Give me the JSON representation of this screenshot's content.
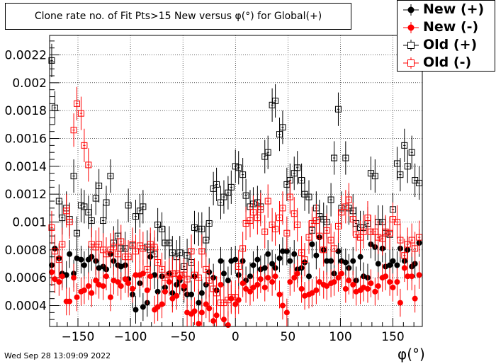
{
  "title": "Clone rate no. of Fit Pts>15 New versus φ(°) for Global(+)",
  "timestamp": "Wed Sep 28 13:09:09 2022",
  "xaxis_title": "φ(°)",
  "legend": [
    {
      "label": "New (+)",
      "color": "#000000",
      "style": "filled-circle"
    },
    {
      "label": "New (-)",
      "color": "#ff0000",
      "style": "filled-circle"
    },
    {
      "label": "Old (+)",
      "color": "#000000",
      "style": "open-square"
    },
    {
      "label": "Old (-)",
      "color": "#ff0000",
      "style": "open-square"
    }
  ],
  "chart_data": {
    "type": "scatter",
    "xlim": [
      -177,
      178
    ],
    "ylim": [
      0.00025,
      0.00234
    ],
    "xticks": [
      -150,
      -100,
      -50,
      0,
      50,
      100,
      150
    ],
    "xtick_labels": [
      "−150",
      "−100",
      "−50",
      "0",
      "50",
      "100",
      "150"
    ],
    "yticks": [
      0.0004,
      0.0006,
      0.0008,
      0.001,
      0.0012,
      0.0014,
      0.0016,
      0.0018,
      0.002,
      0.0022
    ],
    "ytick_labels": [
      "0.0004",
      "0.0006",
      "0.0008",
      "0.001",
      "0.0012",
      "0.0014",
      "0.0016",
      "0.0018",
      "0.002",
      "0.0022"
    ],
    "grid": true,
    "legend_position": "top-right",
    "x": [
      -175,
      -172,
      -168,
      -165,
      -161,
      -158,
      -154,
      -151,
      -147,
      -144,
      -140,
      -137,
      -133,
      -130,
      -126,
      -123,
      -119,
      -116,
      -112,
      -109,
      -105,
      -102,
      -98,
      -95,
      -91,
      -88,
      -84,
      -81,
      -77,
      -74,
      -70,
      -67,
      -63,
      -60,
      -56,
      -53,
      -49,
      -46,
      -42,
      -39,
      -35,
      -32,
      -28,
      -25,
      -21,
      -18,
      -14,
      -11,
      -7,
      -4,
      0,
      3,
      7,
      10,
      14,
      17,
      21,
      24,
      28,
      31,
      35,
      38,
      42,
      45,
      49,
      52,
      56,
      59,
      63,
      66,
      70,
      73,
      77,
      80,
      84,
      87,
      91,
      94,
      98,
      101,
      105,
      108,
      112,
      115,
      119,
      122,
      126,
      129,
      133,
      136,
      140,
      143,
      147,
      150,
      154,
      157,
      161,
      164,
      168,
      171,
      175
    ],
    "series": [
      {
        "name": "New (+)",
        "color": "#000000",
        "marker": "filled-circle",
        "y": [
          0.00069,
          0.00081,
          0.00074,
          0.00063,
          0.00062,
          0.00077,
          0.00063,
          0.00074,
          0.00073,
          0.00069,
          0.00073,
          0.00075,
          0.00072,
          0.00067,
          0.00068,
          0.00066,
          0.00077,
          0.00072,
          0.00069,
          0.00068,
          0.00069,
          0.00059,
          0.00048,
          0.00037,
          0.00056,
          0.00039,
          0.00042,
          0.00075,
          0.00062,
          0.0005,
          0.00061,
          0.00053,
          0.00063,
          0.00049,
          0.00055,
          0.00058,
          0.00052,
          0.00048,
          0.00048,
          0.00061,
          0.00042,
          0.00049,
          0.00055,
          0.00064,
          0.0006,
          0.00051,
          0.00072,
          0.00063,
          0.00058,
          0.00072,
          0.00073,
          0.00062,
          0.00072,
          0.00058,
          0.00061,
          0.00069,
          0.00073,
          0.00066,
          0.00067,
          0.00077,
          0.0007,
          0.00067,
          0.00074,
          0.00079,
          0.00079,
          0.00072,
          0.00077,
          0.00066,
          0.00067,
          0.00071,
          0.00061,
          0.00084,
          0.00076,
          0.00089,
          0.0008,
          0.00072,
          0.00072,
          0.00063,
          0.00079,
          0.00072,
          0.00071,
          0.00067,
          0.00072,
          0.00058,
          0.00075,
          0.00061,
          0.0006,
          0.00084,
          0.00082,
          0.0007,
          0.00081,
          0.00068,
          0.00069,
          0.00072,
          0.00069,
          0.00081,
          0.00072,
          0.0008,
          0.00068,
          0.0007,
          0.00085
        ],
        "yerr": [
          0.0001,
          0.0001,
          0.0001,
          0.0001,
          0.0001,
          0.0001,
          0.0001,
          0.0001,
          0.0001,
          0.0001,
          0.0001,
          0.0001,
          0.0001,
          0.0001,
          0.0001,
          0.0001,
          0.0001,
          0.0001,
          0.0001,
          0.0001,
          0.0001,
          0.0001,
          0.0001,
          0.0001,
          0.0001,
          0.0001,
          0.0001,
          0.0001,
          0.0001,
          0.0001,
          0.0001,
          0.0001,
          0.0001,
          0.0001,
          0.0001,
          0.0001,
          0.0001,
          0.0001,
          0.0001,
          0.0001,
          0.0001,
          0.0001,
          0.0001,
          0.0001,
          0.0001,
          0.0001,
          0.0001,
          0.0001,
          0.0001,
          0.0001,
          0.0001,
          0.0001,
          0.0001,
          0.0001,
          0.0001,
          0.0001,
          0.0001,
          0.0001,
          0.0001,
          0.0001,
          0.0001,
          0.0001,
          0.0001,
          0.0001,
          0.0001,
          0.0001,
          0.0001,
          0.0001,
          0.0001,
          0.0001,
          0.0001,
          0.0001,
          0.0001,
          0.0001,
          0.0001,
          0.0001,
          0.0001,
          0.0001,
          0.0001,
          0.0001,
          0.0001,
          0.0001,
          0.0001,
          0.0001,
          0.0001,
          0.0001,
          0.0001,
          0.0001,
          0.0001,
          0.0001,
          0.0001,
          0.0001,
          0.0001,
          0.0001,
          0.0001,
          0.0001,
          0.0001,
          0.0001,
          0.0001,
          0.0001,
          0.0001
        ]
      },
      {
        "name": "New (-)",
        "color": "#ff0000",
        "marker": "filled-circle",
        "y": [
          0.00064,
          0.00059,
          0.00057,
          0.00061,
          0.00043,
          0.00043,
          0.0006,
          0.00046,
          0.0005,
          0.00051,
          0.00054,
          0.00049,
          0.00058,
          0.00055,
          0.00054,
          0.00061,
          0.00046,
          0.00058,
          0.00057,
          0.00054,
          0.00059,
          0.00056,
          0.00052,
          0.00062,
          0.00062,
          0.00063,
          0.00051,
          0.00061,
          0.00037,
          0.00039,
          0.00041,
          0.0005,
          0.00057,
          0.00045,
          0.00047,
          0.0006,
          0.00054,
          0.00035,
          0.00034,
          0.00036,
          0.00027,
          0.00035,
          0.00041,
          0.00038,
          0.00029,
          0.00033,
          0.00055,
          0.0003,
          0.00026,
          0.00045,
          0.00041,
          0.00044,
          0.00056,
          0.00052,
          0.0005,
          0.00053,
          0.00055,
          0.00059,
          0.00053,
          0.0006,
          0.00057,
          0.00061,
          0.00048,
          0.0004,
          0.00035,
          0.00057,
          0.0006,
          0.00063,
          0.00052,
          0.00047,
          0.00048,
          0.00049,
          0.00051,
          0.00057,
          0.00055,
          0.00054,
          0.00056,
          0.00057,
          0.0006,
          0.00063,
          0.00052,
          0.00058,
          0.00055,
          0.0005,
          0.00051,
          0.00053,
          0.00052,
          0.00056,
          0.0005,
          0.00054,
          0.0006,
          0.00061,
          0.00057,
          0.00053,
          0.00057,
          0.00042,
          0.00067,
          0.00061,
          0.00061,
          0.00045,
          0.00062
        ],
        "yerr": [
          0.0001,
          0.0001,
          0.0001,
          0.0001,
          0.0001,
          0.0001,
          0.0001,
          0.0001,
          0.0001,
          0.0001,
          0.0001,
          0.0001,
          0.0001,
          0.0001,
          0.0001,
          0.0001,
          0.0001,
          0.0001,
          0.0001,
          0.0001,
          0.0001,
          0.0001,
          0.0001,
          0.0001,
          0.0001,
          0.0001,
          0.0001,
          0.0001,
          0.0001,
          0.0001,
          0.0001,
          0.0001,
          0.0001,
          0.0001,
          0.0001,
          0.0001,
          0.0001,
          0.0001,
          0.0001,
          0.0001,
          0.0001,
          0.0001,
          0.0001,
          0.0001,
          0.0001,
          0.0001,
          0.0001,
          0.0001,
          0.0001,
          0.0001,
          0.0001,
          0.0001,
          0.0001,
          0.0001,
          0.0001,
          0.0001,
          0.0001,
          0.0001,
          0.0001,
          0.0001,
          0.0001,
          0.0001,
          0.0001,
          0.0001,
          0.0001,
          0.0001,
          0.0001,
          0.0001,
          0.0001,
          0.0001,
          0.0001,
          0.0001,
          0.0001,
          0.0001,
          0.0001,
          0.0001,
          0.0001,
          0.0001,
          0.0001,
          0.0001,
          0.0001,
          0.0001,
          0.0001,
          0.0001,
          0.0001,
          0.0001,
          0.0001,
          0.0001,
          0.0001,
          0.0001,
          0.0001,
          0.0001,
          0.0001,
          0.0001,
          0.0001,
          0.0001,
          0.0001,
          0.0001,
          0.0001,
          0.0001,
          0.0001
        ]
      },
      {
        "name": "Old (+)",
        "color": "#000000",
        "marker": "open-square",
        "y": [
          0.00216,
          0.00182,
          0.00115,
          0.00103,
          0.0011,
          0.00102,
          0.00133,
          0.00092,
          0.00112,
          0.00111,
          0.00107,
          0.00101,
          0.00117,
          0.00126,
          0.00101,
          0.00114,
          0.00133,
          0.00085,
          0.0009,
          0.00081,
          0.00081,
          0.00112,
          0.00083,
          0.00104,
          0.00108,
          0.00111,
          0.00082,
          0.0008,
          0.00077,
          0.00098,
          0.00095,
          0.00085,
          0.00085,
          0.00078,
          0.00075,
          0.00078,
          0.00068,
          0.00076,
          0.00071,
          0.00096,
          0.00095,
          0.00095,
          0.00087,
          0.00099,
          0.00124,
          0.00127,
          0.00114,
          0.00118,
          0.00121,
          0.00125,
          0.0014,
          0.00139,
          0.00134,
          0.00119,
          0.00111,
          0.00113,
          0.00114,
          0.00111,
          0.00147,
          0.0015,
          0.00184,
          0.00187,
          0.00163,
          0.00168,
          0.00127,
          0.0013,
          0.00135,
          0.00139,
          0.0013,
          0.0012,
          0.00118,
          0.00094,
          0.0011,
          0.00104,
          0.00102,
          0.001,
          0.00116,
          0.00146,
          0.00181,
          0.0011,
          0.00146,
          0.0011,
          0.00108,
          0.00099,
          0.00096,
          0.00096,
          0.00099,
          0.00135,
          0.00133,
          0.001,
          0.001,
          0.00092,
          0.00091,
          0.00109,
          0.00142,
          0.00134,
          0.00155,
          0.0014,
          0.0015,
          0.0013,
          0.00128
        ],
        "yerr": [
          0.00012,
          0.00012,
          0.00012,
          0.00012,
          0.00012,
          0.00012,
          0.00012,
          0.00012,
          0.00012,
          0.00012,
          0.00012,
          0.00012,
          0.00012,
          0.00012,
          0.00012,
          0.00012,
          0.00012,
          0.00012,
          0.00012,
          0.00012,
          0.00012,
          0.00012,
          0.00012,
          0.00012,
          0.00012,
          0.00012,
          0.00012,
          0.00012,
          0.00012,
          0.00012,
          0.00012,
          0.00012,
          0.00012,
          0.00012,
          0.00012,
          0.00012,
          0.00012,
          0.00012,
          0.00012,
          0.00012,
          0.00012,
          0.00012,
          0.00012,
          0.00012,
          0.00012,
          0.00012,
          0.00012,
          0.00012,
          0.00012,
          0.00012,
          0.00012,
          0.00012,
          0.00012,
          0.00012,
          0.00012,
          0.00012,
          0.00012,
          0.00012,
          0.00012,
          0.00012,
          0.00012,
          0.00012,
          0.00012,
          0.00012,
          0.00012,
          0.00012,
          0.00012,
          0.00012,
          0.00012,
          0.00012,
          0.00012,
          0.00012,
          0.00012,
          0.00012,
          0.00012,
          0.00012,
          0.00012,
          0.00012,
          0.00012,
          0.00012,
          0.00012,
          0.00012,
          0.00012,
          0.00012,
          0.00012,
          0.00012,
          0.00012,
          0.00012,
          0.00012,
          0.00012,
          0.00012,
          0.00012,
          0.00012,
          0.00012,
          0.00012,
          0.00012,
          0.00012,
          0.00012,
          0.00012,
          0.00012,
          0.00012
        ]
      },
      {
        "name": "Old (-)",
        "color": "#ff0000",
        "marker": "open-square",
        "y": [
          0.00096,
          0.00079,
          0.00073,
          0.00084,
          0.00108,
          0.001,
          0.00166,
          0.00185,
          0.00178,
          0.00155,
          0.00141,
          0.00084,
          0.00082,
          0.00084,
          0.0008,
          0.00077,
          0.0008,
          0.00082,
          0.00077,
          0.00086,
          0.00075,
          0.00075,
          0.00084,
          0.00079,
          0.00083,
          0.00081,
          0.00066,
          0.00084,
          0.00082,
          0.00071,
          0.00066,
          0.0006,
          0.00062,
          0.00063,
          0.00063,
          0.00062,
          0.00062,
          0.00059,
          0.00079,
          0.00062,
          0.0006,
          0.00079,
          0.00066,
          0.00058,
          0.00052,
          0.00049,
          0.00042,
          0.00042,
          0.00044,
          0.00046,
          0.00046,
          0.00068,
          0.00081,
          0.00099,
          0.00101,
          0.00107,
          0.00103,
          0.00109,
          0.00093,
          0.00115,
          0.00098,
          0.00095,
          0.00103,
          0.0011,
          0.00092,
          0.00118,
          0.00106,
          0.00098,
          0.00078,
          0.00073,
          0.00089,
          0.00099,
          0.00101,
          0.0009,
          0.0008,
          0.00094,
          0.00087,
          0.00081,
          0.00097,
          0.00107,
          0.00111,
          0.00116,
          0.00102,
          0.00091,
          0.00089,
          0.00093,
          0.00103,
          0.00093,
          0.00093,
          0.00089,
          0.00088,
          0.00093,
          0.00092,
          0.00102,
          0.001,
          0.00087,
          0.00076,
          0.00084,
          0.00087,
          0.00081,
          0.00089
        ],
        "yerr": [
          0.00012,
          0.00012,
          0.00012,
          0.00012,
          0.00012,
          0.00012,
          0.00012,
          0.00012,
          0.00012,
          0.00012,
          0.00012,
          0.00012,
          0.00012,
          0.00012,
          0.00012,
          0.00012,
          0.00012,
          0.00012,
          0.00012,
          0.00012,
          0.00012,
          0.00012,
          0.00012,
          0.00012,
          0.00012,
          0.00012,
          0.00012,
          0.00012,
          0.00012,
          0.00012,
          0.00012,
          0.00012,
          0.00012,
          0.00012,
          0.00012,
          0.00012,
          0.00012,
          0.00012,
          0.00012,
          0.00012,
          0.00012,
          0.00012,
          0.00012,
          0.00012,
          0.00012,
          0.00012,
          0.00012,
          0.00012,
          0.00012,
          0.00012,
          0.00012,
          0.00012,
          0.00012,
          0.00012,
          0.00012,
          0.00012,
          0.00012,
          0.00012,
          0.00012,
          0.00012,
          0.00012,
          0.00012,
          0.00012,
          0.00012,
          0.00012,
          0.00012,
          0.00012,
          0.00012,
          0.00012,
          0.00012,
          0.00012,
          0.00012,
          0.00012,
          0.00012,
          0.00012,
          0.00012,
          0.00012,
          0.00012,
          0.00012,
          0.00012,
          0.00012,
          0.00012,
          0.00012,
          0.00012,
          0.00012,
          0.00012,
          0.00012,
          0.00012,
          0.00012,
          0.00012,
          0.00012,
          0.00012,
          0.00012,
          0.00012,
          0.00012,
          0.00012,
          0.00012,
          0.00012,
          0.00012,
          0.00012,
          0.00012
        ]
      }
    ]
  }
}
